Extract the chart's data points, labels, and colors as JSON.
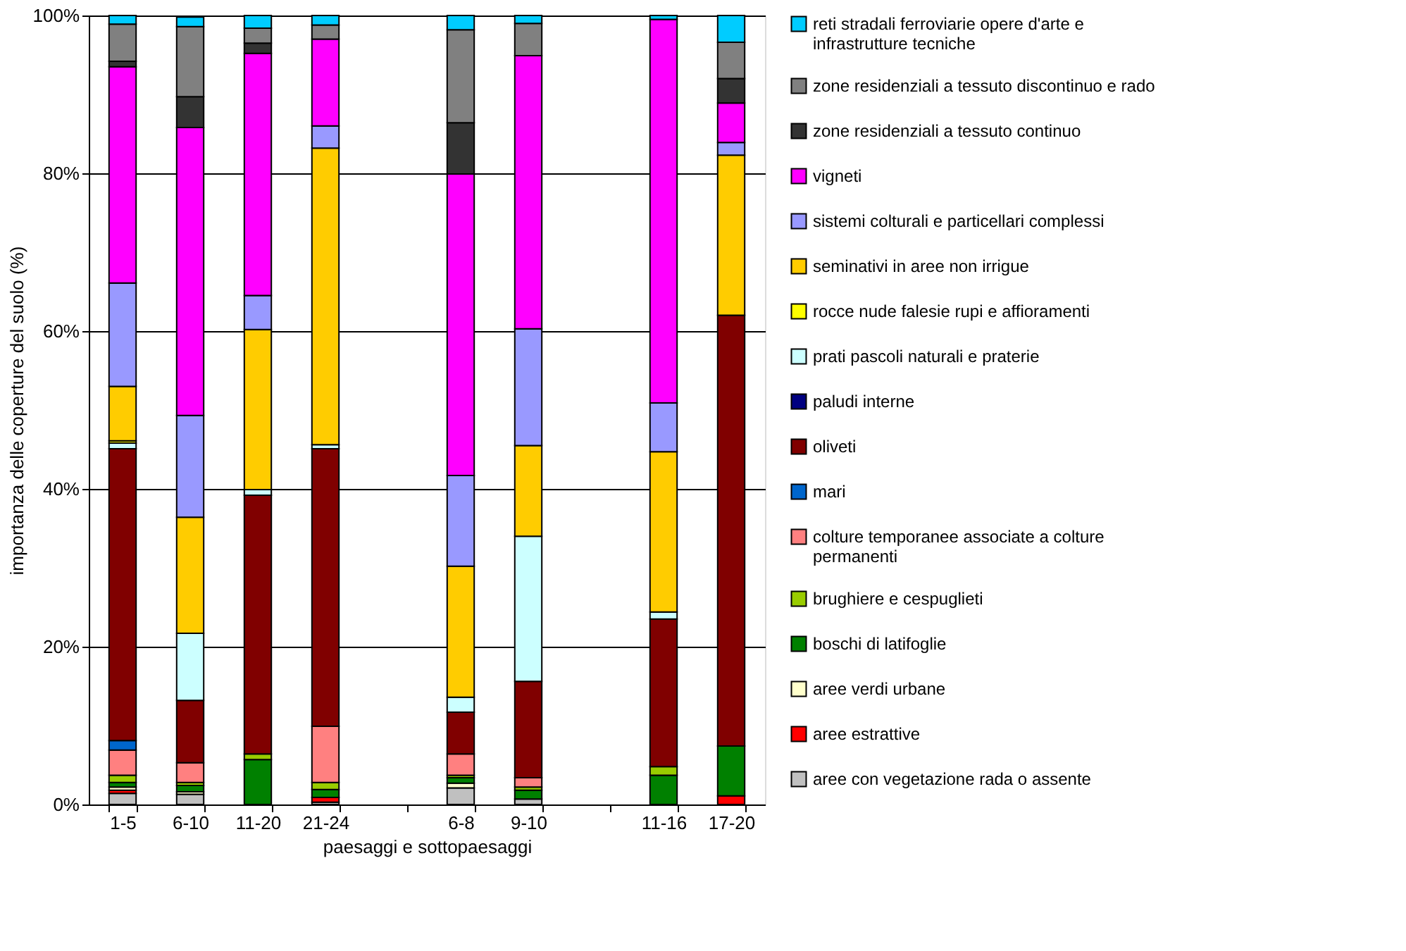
{
  "chart_data": {
    "type": "bar",
    "stacked": true,
    "xlabel": "paesaggi e sottopaesaggi",
    "ylabel": "importanza delle coperture del suolo (%)",
    "categories": [
      "1-5",
      "6-10",
      "11-20",
      "21-24",
      null,
      "6-8",
      "9-10",
      null,
      "11-16",
      "17-20"
    ],
    "ylim": [
      0,
      100
    ],
    "yticks": [
      {
        "value": 0,
        "label": "0%"
      },
      {
        "value": 20,
        "label": "20%"
      },
      {
        "value": 40,
        "label": "40%"
      },
      {
        "value": 60,
        "label": "60%"
      },
      {
        "value": 80,
        "label": "80%"
      },
      {
        "value": 100,
        "label": "100%"
      }
    ],
    "grid": "y",
    "legend": "right",
    "series": [
      {
        "name": "aree con vegetazione rada o assente",
        "color": "#c0c0c0",
        "values": [
          1.4,
          1.3,
          0,
          0.3,
          null,
          2.1,
          0.7,
          null,
          0,
          0
        ]
      },
      {
        "name": "aree estrattive",
        "color": "#ff0000",
        "values": [
          0.4,
          null,
          0,
          0.6,
          null,
          0,
          0,
          null,
          0,
          1.1
        ]
      },
      {
        "name": "aree verdi urbane",
        "color": "#ffffcc",
        "values": [
          0.4,
          0.3,
          0,
          0,
          null,
          0.6,
          0,
          null,
          0,
          0
        ]
      },
      {
        "name": "boschi di latifoglie",
        "color": "#008000",
        "values": [
          0.6,
          0.8,
          5.7,
          1.0,
          null,
          0.7,
          1.1,
          null,
          3.7,
          6.3
        ]
      },
      {
        "name": "brughiere e cespuglieti",
        "color": "#99cc00",
        "values": [
          0.9,
          0.4,
          0.7,
          0.9,
          null,
          0.3,
          0.4,
          null,
          1.1,
          0
        ]
      },
      {
        "name": "colture temporanee associate a colture permanenti",
        "color": "#ff8080",
        "values": [
          3.2,
          2.5,
          0,
          7.1,
          null,
          2.7,
          1.2,
          null,
          0,
          0
        ]
      },
      {
        "name": "mari",
        "color": "#0066cc",
        "values": [
          1.2,
          0,
          0,
          0,
          null,
          0,
          0,
          null,
          0,
          0
        ]
      },
      {
        "name": "oliveti",
        "color": "#800000",
        "values": [
          37.0,
          7.9,
          32.8,
          35.2,
          null,
          5.3,
          12.2,
          null,
          18.7,
          54.6
        ]
      },
      {
        "name": "paludi interne",
        "color": "#000080",
        "values": [
          0,
          0,
          0,
          0,
          null,
          0,
          0,
          null,
          0,
          0
        ]
      },
      {
        "name": "prati pascoli naturali e praterie",
        "color": "#ccffff",
        "values": [
          0.7,
          8.5,
          0.7,
          0.5,
          null,
          1.9,
          18.4,
          null,
          0.9,
          0
        ]
      },
      {
        "name": "rocce nude falesie rupi e affioramenti",
        "color": "#ffff00",
        "values": [
          0.3,
          0,
          0,
          0,
          null,
          0,
          0,
          null,
          0,
          0
        ]
      },
      {
        "name": "seminativi in aree non irrigue",
        "color": "#ffcc00",
        "values": [
          6.9,
          14.7,
          20.3,
          37.6,
          null,
          16.6,
          11.5,
          null,
          20.3,
          20.3
        ]
      },
      {
        "name": "sistemi colturali e particellari complessi",
        "color": "#9999ff",
        "values": [
          13.1,
          12.9,
          4.3,
          2.8,
          null,
          11.5,
          14.8,
          null,
          6.2,
          1.6
        ]
      },
      {
        "name": "vigneti",
        "color": "#ff00ff",
        "values": [
          27.4,
          36.5,
          30.7,
          11.0,
          null,
          38.2,
          34.6,
          null,
          48.6,
          5.0
        ]
      },
      {
        "name": "zone residenziali a tessuto continuo",
        "color": "#333333",
        "values": [
          0.7,
          3.9,
          1.3,
          0,
          null,
          6.5,
          0,
          null,
          0,
          3.1
        ]
      },
      {
        "name": "zone residenziali a tessuto discontinuo e rado",
        "color": "#808080",
        "values": [
          4.7,
          8.9,
          1.9,
          1.8,
          null,
          11.8,
          4.1,
          null,
          0,
          4.6
        ]
      },
      {
        "name": "reti stradali ferroviarie opere d'arte e infrastrutture tecniche",
        "color": "#00ccff",
        "values": [
          1.1,
          1.2,
          1.6,
          1.2,
          null,
          1.8,
          1.0,
          null,
          0.5,
          3.4
        ]
      }
    ]
  }
}
